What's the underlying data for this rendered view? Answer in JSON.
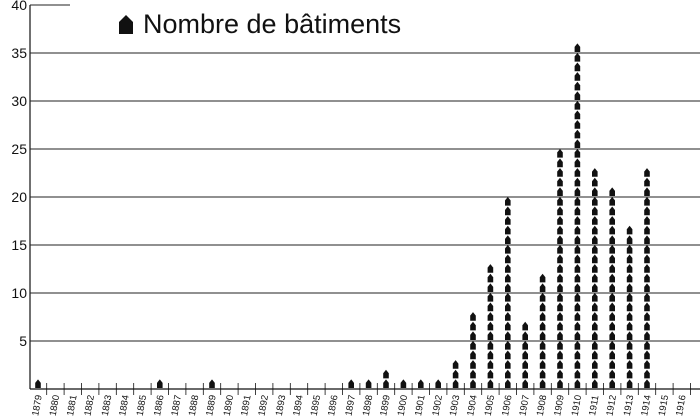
{
  "chart_data": {
    "type": "bar",
    "style": "pictogram",
    "legend": {
      "label": "Nombre de bâtiments",
      "icon": "house-icon",
      "position": "top-left"
    },
    "categories": [
      "1879",
      "1880",
      "1881",
      "1882",
      "1883",
      "1884",
      "1885",
      "1886",
      "1887",
      "1888",
      "1889",
      "1890",
      "1891",
      "1892",
      "1893",
      "1894",
      "1895",
      "1896",
      "1897",
      "1898",
      "1899",
      "1900",
      "1901",
      "1902",
      "1903",
      "1904",
      "1905",
      "1906",
      "1907",
      "1908",
      "1909",
      "1910",
      "1911",
      "1912",
      "1913",
      "1914",
      "1915",
      "1916"
    ],
    "values": [
      1,
      0,
      0,
      0,
      0,
      0,
      0,
      1,
      0,
      0,
      1,
      0,
      0,
      0,
      0,
      0,
      0,
      0,
      1,
      1,
      2,
      1,
      1,
      1,
      3,
      8,
      13,
      20,
      7,
      12,
      25,
      36,
      23,
      21,
      17,
      23,
      0,
      0
    ],
    "ylim": [
      0,
      40
    ],
    "yticks": [
      5,
      10,
      15,
      20,
      25,
      30,
      35,
      40
    ],
    "grid": true,
    "colors": {
      "mark": "#111111",
      "grid": "#222222"
    }
  }
}
